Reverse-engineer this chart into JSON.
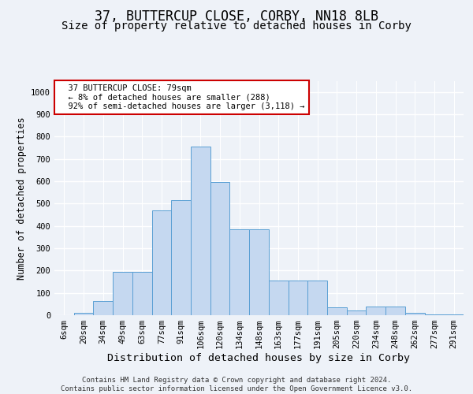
{
  "title1": "37, BUTTERCUP CLOSE, CORBY, NN18 8LB",
  "title2": "Size of property relative to detached houses in Corby",
  "xlabel": "Distribution of detached houses by size in Corby",
  "ylabel": "Number of detached properties",
  "categories": [
    "6sqm",
    "20sqm",
    "34sqm",
    "49sqm",
    "63sqm",
    "77sqm",
    "91sqm",
    "106sqm",
    "120sqm",
    "134sqm",
    "148sqm",
    "163sqm",
    "177sqm",
    "191sqm",
    "205sqm",
    "220sqm",
    "234sqm",
    "248sqm",
    "262sqm",
    "277sqm",
    "291sqm"
  ],
  "values": [
    0,
    10,
    63,
    195,
    195,
    470,
    515,
    755,
    595,
    385,
    385,
    155,
    155,
    155,
    35,
    22,
    40,
    40,
    10,
    5,
    5
  ],
  "bar_color": "#c5d8f0",
  "bar_edge_color": "#5a9fd4",
  "highlight_index": 5,
  "annotation_text": "  37 BUTTERCUP CLOSE: 79sqm\n  ← 8% of detached houses are smaller (288)\n  92% of semi-detached houses are larger (3,118) →",
  "annotation_box_color": "#ffffff",
  "annotation_box_edge_color": "#cc0000",
  "footer": "Contains HM Land Registry data © Crown copyright and database right 2024.\nContains public sector information licensed under the Open Government Licence v3.0.",
  "ylim": [
    0,
    1050
  ],
  "yticks": [
    0,
    100,
    200,
    300,
    400,
    500,
    600,
    700,
    800,
    900,
    1000
  ],
  "bg_color": "#eef2f8",
  "plot_bg_color": "#eef2f8",
  "grid_color": "#ffffff",
  "title1_fontsize": 12,
  "title2_fontsize": 10,
  "tick_fontsize": 7.5,
  "ylabel_fontsize": 8.5,
  "xlabel_fontsize": 9.5,
  "annotation_fontsize": 7.5
}
